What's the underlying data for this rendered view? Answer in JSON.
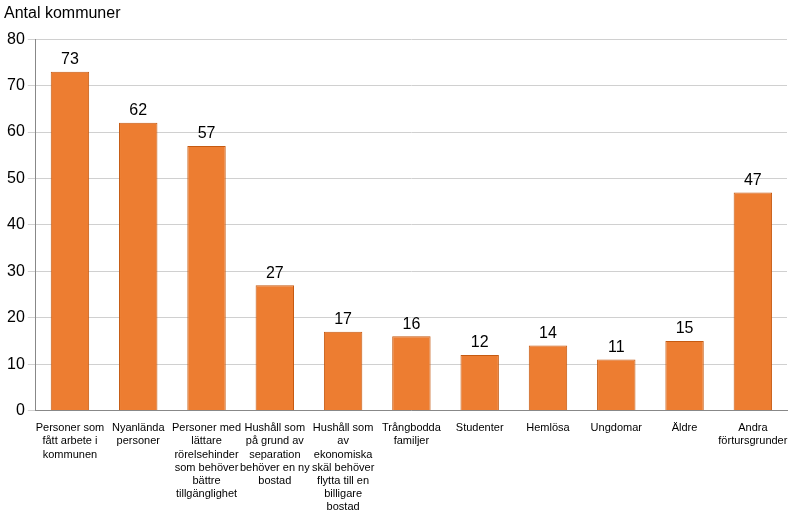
{
  "chart_data": {
    "type": "bar",
    "ylabel": "Antal kommuner",
    "categories": [
      "Personer som fått arbete i kommunen",
      "Nyanlända personer",
      "Personer med lättare rörelsehinder som behöver bättre tillgänglighet",
      "Hushåll som på grund av separation behöver en ny bostad",
      "Hushåll som av ekonomiska skäl behöver flytta till en billigare bostad",
      "Trångbodda familjer",
      "Studenter",
      "Hemlösa",
      "Ungdomar",
      "Äldre",
      "Andra förtursgrunder"
    ],
    "values": [
      73,
      62,
      57,
      27,
      17,
      16,
      12,
      14,
      11,
      15,
      47
    ],
    "color": "#ed7d31",
    "ylim": [
      0,
      80
    ],
    "yticks": [
      0,
      10,
      20,
      30,
      40,
      50,
      60,
      70,
      80
    ],
    "grid": true,
    "data_labels": true
  }
}
